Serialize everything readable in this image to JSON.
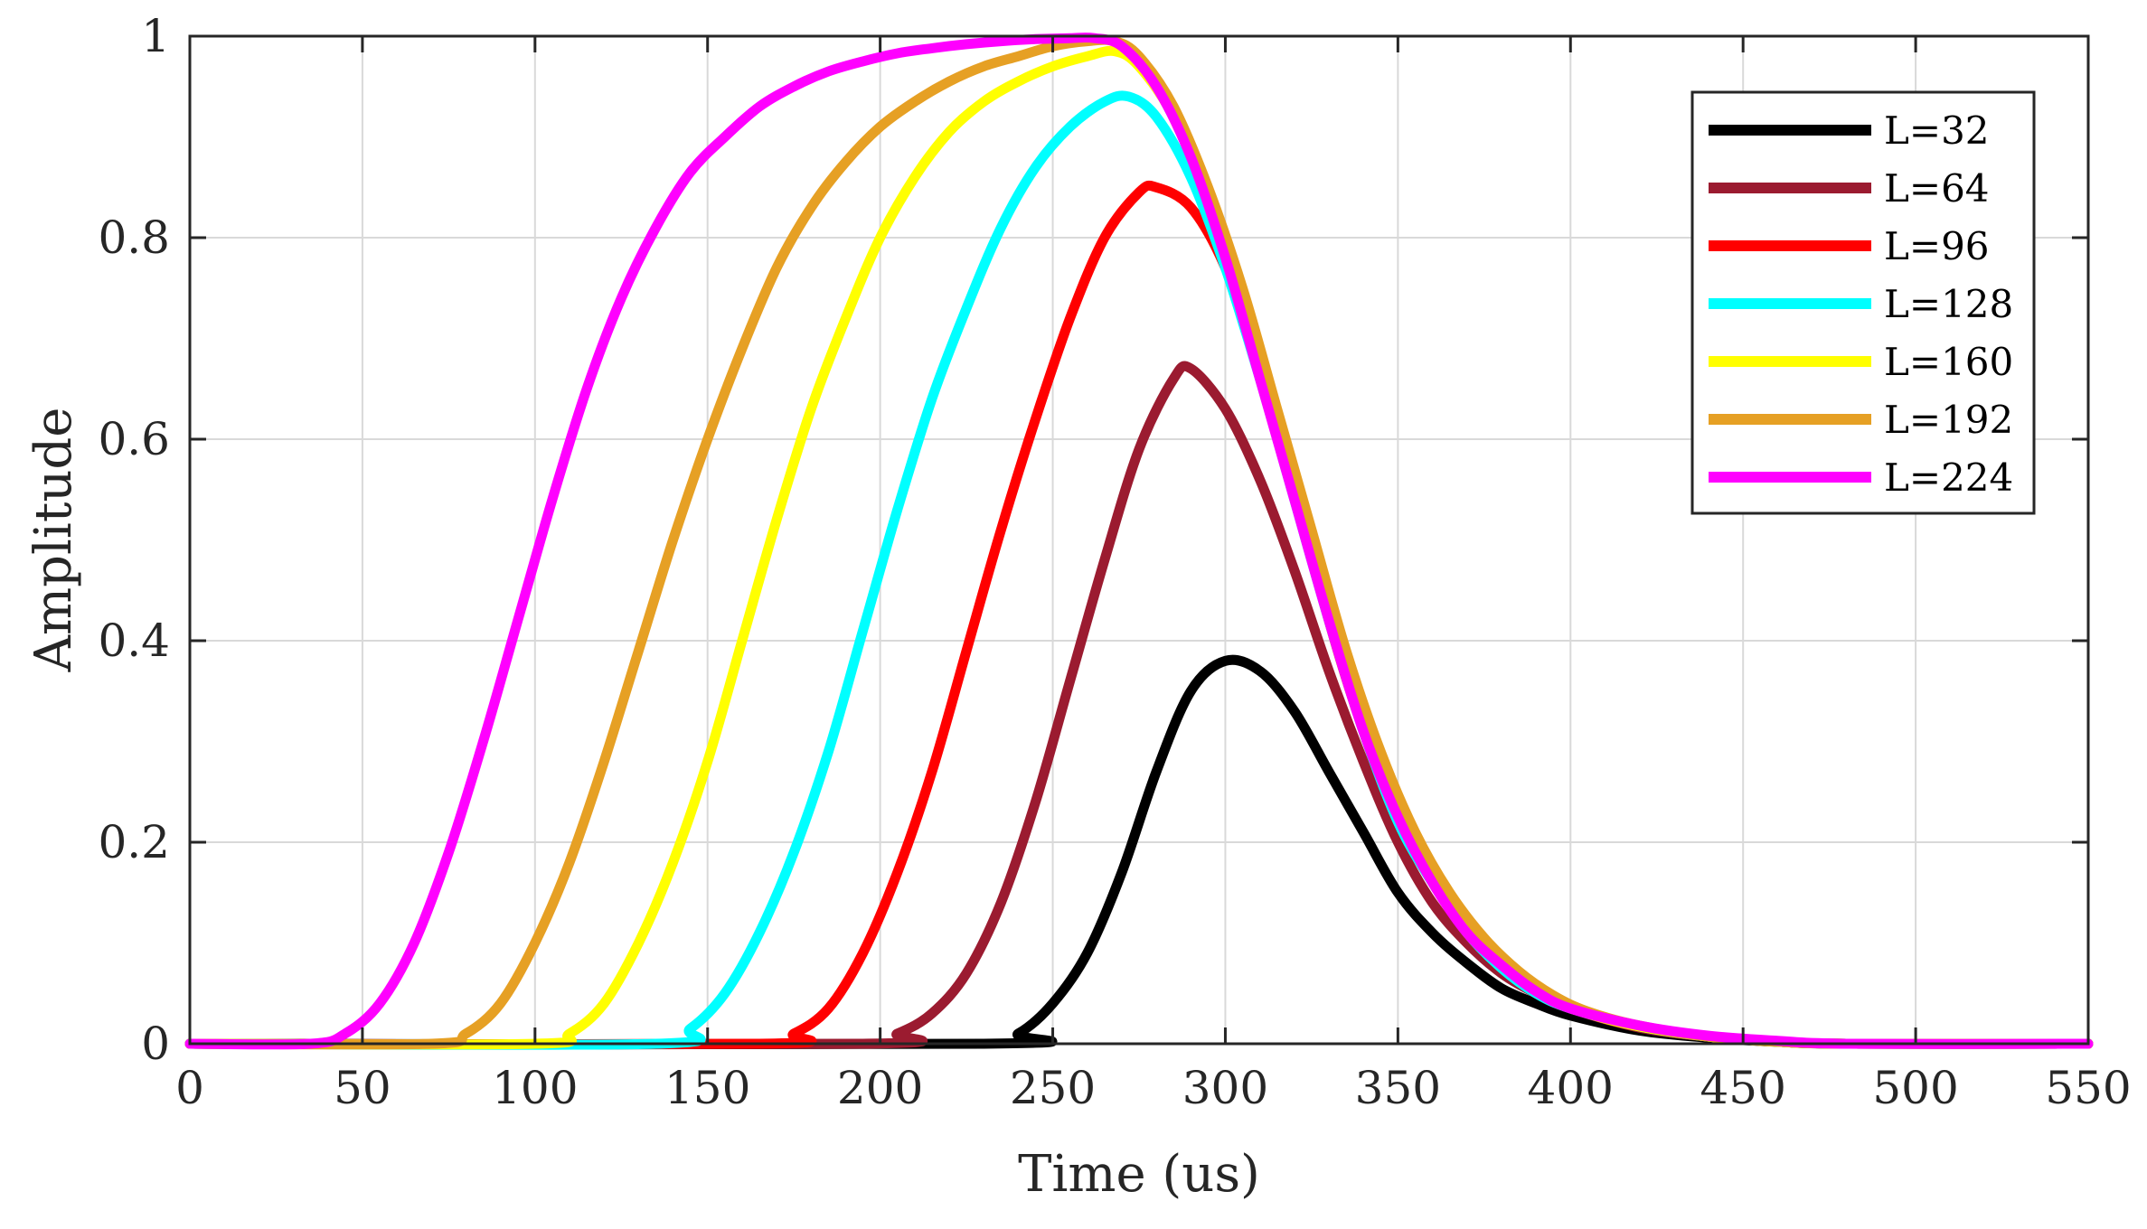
{
  "chart_data": {
    "type": "line",
    "title": "",
    "xlabel": "Time (us)",
    "ylabel": "Amplitude",
    "xlim": [
      0,
      550
    ],
    "ylim": [
      0,
      1
    ],
    "grid": true,
    "legend_position": "top-right",
    "x_ticks": [
      {
        "value": 0,
        "label": "0"
      },
      {
        "value": 50,
        "label": "50"
      },
      {
        "value": 100,
        "label": "100"
      },
      {
        "value": 150,
        "label": "150"
      },
      {
        "value": 200,
        "label": "200"
      },
      {
        "value": 250,
        "label": "250"
      },
      {
        "value": 300,
        "label": "300"
      },
      {
        "value": 350,
        "label": "350"
      },
      {
        "value": 400,
        "label": "400"
      },
      {
        "value": 450,
        "label": "450"
      },
      {
        "value": 500,
        "label": "500"
      },
      {
        "value": 550,
        "label": "550"
      }
    ],
    "y_ticks": [
      {
        "value": 0,
        "label": "0"
      },
      {
        "value": 0.2,
        "label": "0.2"
      },
      {
        "value": 0.4,
        "label": "0.4"
      },
      {
        "value": 0.6,
        "label": "0.6"
      },
      {
        "value": 0.8,
        "label": "0.8"
      },
      {
        "value": 1,
        "label": "1"
      }
    ],
    "series": [
      {
        "name": "L=32",
        "color": "#000000",
        "points": [
          [
            0,
            0
          ],
          [
            230,
            0
          ],
          [
            240,
            0.01
          ],
          [
            250,
            0.04
          ],
          [
            260,
            0.09
          ],
          [
            270,
            0.17
          ],
          [
            280,
            0.27
          ],
          [
            290,
            0.35
          ],
          [
            300,
            0.38
          ],
          [
            310,
            0.37
          ],
          [
            320,
            0.33
          ],
          [
            330,
            0.27
          ],
          [
            340,
            0.21
          ],
          [
            350,
            0.15
          ],
          [
            360,
            0.11
          ],
          [
            370,
            0.08
          ],
          [
            380,
            0.055
          ],
          [
            390,
            0.04
          ],
          [
            400,
            0.028
          ],
          [
            420,
            0.013
          ],
          [
            440,
            0.006
          ],
          [
            460,
            0.002
          ],
          [
            480,
            0
          ],
          [
            550,
            0
          ]
        ]
      },
      {
        "name": "L=64",
        "color": "#9b1b30",
        "points": [
          [
            0,
            0
          ],
          [
            195,
            0
          ],
          [
            205,
            0.01
          ],
          [
            215,
            0.03
          ],
          [
            225,
            0.07
          ],
          [
            235,
            0.14
          ],
          [
            245,
            0.24
          ],
          [
            255,
            0.36
          ],
          [
            265,
            0.48
          ],
          [
            275,
            0.59
          ],
          [
            285,
            0.66
          ],
          [
            290,
            0.67
          ],
          [
            300,
            0.63
          ],
          [
            310,
            0.56
          ],
          [
            320,
            0.47
          ],
          [
            330,
            0.37
          ],
          [
            340,
            0.28
          ],
          [
            350,
            0.2
          ],
          [
            360,
            0.14
          ],
          [
            370,
            0.1
          ],
          [
            380,
            0.07
          ],
          [
            390,
            0.05
          ],
          [
            400,
            0.035
          ],
          [
            420,
            0.016
          ],
          [
            440,
            0.007
          ],
          [
            460,
            0.002
          ],
          [
            480,
            0
          ],
          [
            550,
            0
          ]
        ]
      },
      {
        "name": "L=96",
        "color": "#ff0000",
        "points": [
          [
            0,
            0
          ],
          [
            165,
            0
          ],
          [
            175,
            0.01
          ],
          [
            185,
            0.035
          ],
          [
            195,
            0.09
          ],
          [
            205,
            0.17
          ],
          [
            215,
            0.27
          ],
          [
            225,
            0.39
          ],
          [
            235,
            0.51
          ],
          [
            245,
            0.62
          ],
          [
            255,
            0.72
          ],
          [
            265,
            0.8
          ],
          [
            275,
            0.845
          ],
          [
            280,
            0.85
          ],
          [
            290,
            0.83
          ],
          [
            300,
            0.77
          ],
          [
            310,
            0.67
          ],
          [
            320,
            0.55
          ],
          [
            330,
            0.42
          ],
          [
            340,
            0.31
          ],
          [
            350,
            0.22
          ],
          [
            360,
            0.16
          ],
          [
            370,
            0.11
          ],
          [
            380,
            0.075
          ],
          [
            390,
            0.05
          ],
          [
            400,
            0.035
          ],
          [
            420,
            0.017
          ],
          [
            440,
            0.007
          ],
          [
            460,
            0.002
          ],
          [
            480,
            0
          ],
          [
            550,
            0
          ]
        ]
      },
      {
        "name": "L=128",
        "color": "#00ffff",
        "points": [
          [
            0,
            0
          ],
          [
            135,
            0
          ],
          [
            145,
            0.015
          ],
          [
            155,
            0.05
          ],
          [
            165,
            0.11
          ],
          [
            175,
            0.19
          ],
          [
            185,
            0.29
          ],
          [
            195,
            0.41
          ],
          [
            205,
            0.53
          ],
          [
            215,
            0.64
          ],
          [
            225,
            0.73
          ],
          [
            235,
            0.81
          ],
          [
            245,
            0.87
          ],
          [
            255,
            0.91
          ],
          [
            265,
            0.935
          ],
          [
            272,
            0.94
          ],
          [
            280,
            0.92
          ],
          [
            290,
            0.86
          ],
          [
            300,
            0.77
          ],
          [
            310,
            0.66
          ],
          [
            320,
            0.54
          ],
          [
            330,
            0.42
          ],
          [
            340,
            0.31
          ],
          [
            350,
            0.22
          ],
          [
            360,
            0.16
          ],
          [
            370,
            0.11
          ],
          [
            380,
            0.075
          ],
          [
            390,
            0.05
          ],
          [
            400,
            0.035
          ],
          [
            420,
            0.017
          ],
          [
            440,
            0.007
          ],
          [
            460,
            0.002
          ],
          [
            480,
            0
          ],
          [
            550,
            0
          ]
        ]
      },
      {
        "name": "L=160",
        "color": "#ffff00",
        "points": [
          [
            0,
            0
          ],
          [
            100,
            0
          ],
          [
            110,
            0.01
          ],
          [
            120,
            0.04
          ],
          [
            130,
            0.1
          ],
          [
            140,
            0.18
          ],
          [
            150,
            0.28
          ],
          [
            160,
            0.4
          ],
          [
            170,
            0.52
          ],
          [
            180,
            0.63
          ],
          [
            190,
            0.72
          ],
          [
            200,
            0.8
          ],
          [
            210,
            0.86
          ],
          [
            220,
            0.905
          ],
          [
            230,
            0.935
          ],
          [
            240,
            0.955
          ],
          [
            250,
            0.97
          ],
          [
            260,
            0.98
          ],
          [
            268,
            0.985
          ],
          [
            275,
            0.97
          ],
          [
            285,
            0.92
          ],
          [
            295,
            0.84
          ],
          [
            305,
            0.74
          ],
          [
            315,
            0.62
          ],
          [
            325,
            0.5
          ],
          [
            335,
            0.38
          ],
          [
            345,
            0.28
          ],
          [
            355,
            0.2
          ],
          [
            365,
            0.14
          ],
          [
            375,
            0.1
          ],
          [
            385,
            0.07
          ],
          [
            395,
            0.045
          ],
          [
            405,
            0.03
          ],
          [
            420,
            0.017
          ],
          [
            440,
            0.007
          ],
          [
            460,
            0.002
          ],
          [
            480,
            0
          ],
          [
            550,
            0
          ]
        ]
      },
      {
        "name": "L=192",
        "color": "#e6a024",
        "points": [
          [
            0,
            0
          ],
          [
            70,
            0
          ],
          [
            80,
            0.01
          ],
          [
            90,
            0.04
          ],
          [
            100,
            0.1
          ],
          [
            110,
            0.18
          ],
          [
            120,
            0.28
          ],
          [
            130,
            0.39
          ],
          [
            140,
            0.5
          ],
          [
            150,
            0.6
          ],
          [
            160,
            0.69
          ],
          [
            170,
            0.77
          ],
          [
            180,
            0.83
          ],
          [
            190,
            0.875
          ],
          [
            200,
            0.91
          ],
          [
            210,
            0.935
          ],
          [
            220,
            0.955
          ],
          [
            230,
            0.97
          ],
          [
            240,
            0.98
          ],
          [
            250,
            0.99
          ],
          [
            260,
            0.995
          ],
          [
            268,
            0.995
          ],
          [
            275,
            0.98
          ],
          [
            285,
            0.93
          ],
          [
            295,
            0.85
          ],
          [
            305,
            0.75
          ],
          [
            315,
            0.63
          ],
          [
            325,
            0.51
          ],
          [
            335,
            0.39
          ],
          [
            345,
            0.29
          ],
          [
            355,
            0.21
          ],
          [
            365,
            0.15
          ],
          [
            375,
            0.105
          ],
          [
            385,
            0.072
          ],
          [
            395,
            0.048
          ],
          [
            405,
            0.032
          ],
          [
            420,
            0.018
          ],
          [
            440,
            0.007
          ],
          [
            460,
            0.002
          ],
          [
            480,
            0
          ],
          [
            550,
            0
          ]
        ]
      },
      {
        "name": "L=224",
        "color": "#ff00ff",
        "points": [
          [
            0,
            0
          ],
          [
            35,
            0
          ],
          [
            45,
            0.01
          ],
          [
            55,
            0.04
          ],
          [
            65,
            0.1
          ],
          [
            75,
            0.19
          ],
          [
            85,
            0.3
          ],
          [
            95,
            0.42
          ],
          [
            105,
            0.54
          ],
          [
            115,
            0.65
          ],
          [
            125,
            0.74
          ],
          [
            135,
            0.81
          ],
          [
            145,
            0.865
          ],
          [
            155,
            0.9
          ],
          [
            165,
            0.93
          ],
          [
            175,
            0.95
          ],
          [
            185,
            0.965
          ],
          [
            195,
            0.975
          ],
          [
            205,
            0.983
          ],
          [
            215,
            0.988
          ],
          [
            225,
            0.992
          ],
          [
            235,
            0.995
          ],
          [
            245,
            0.997
          ],
          [
            255,
            0.998
          ],
          [
            262,
            0.998
          ],
          [
            270,
            0.99
          ],
          [
            280,
            0.95
          ],
          [
            290,
            0.88
          ],
          [
            300,
            0.78
          ],
          [
            310,
            0.66
          ],
          [
            320,
            0.54
          ],
          [
            330,
            0.42
          ],
          [
            340,
            0.31
          ],
          [
            350,
            0.225
          ],
          [
            360,
            0.16
          ],
          [
            370,
            0.11
          ],
          [
            380,
            0.078
          ],
          [
            390,
            0.052
          ],
          [
            400,
            0.035
          ],
          [
            420,
            0.018
          ],
          [
            440,
            0.008
          ],
          [
            460,
            0.003
          ],
          [
            480,
            0
          ],
          [
            550,
            0
          ]
        ]
      }
    ]
  }
}
